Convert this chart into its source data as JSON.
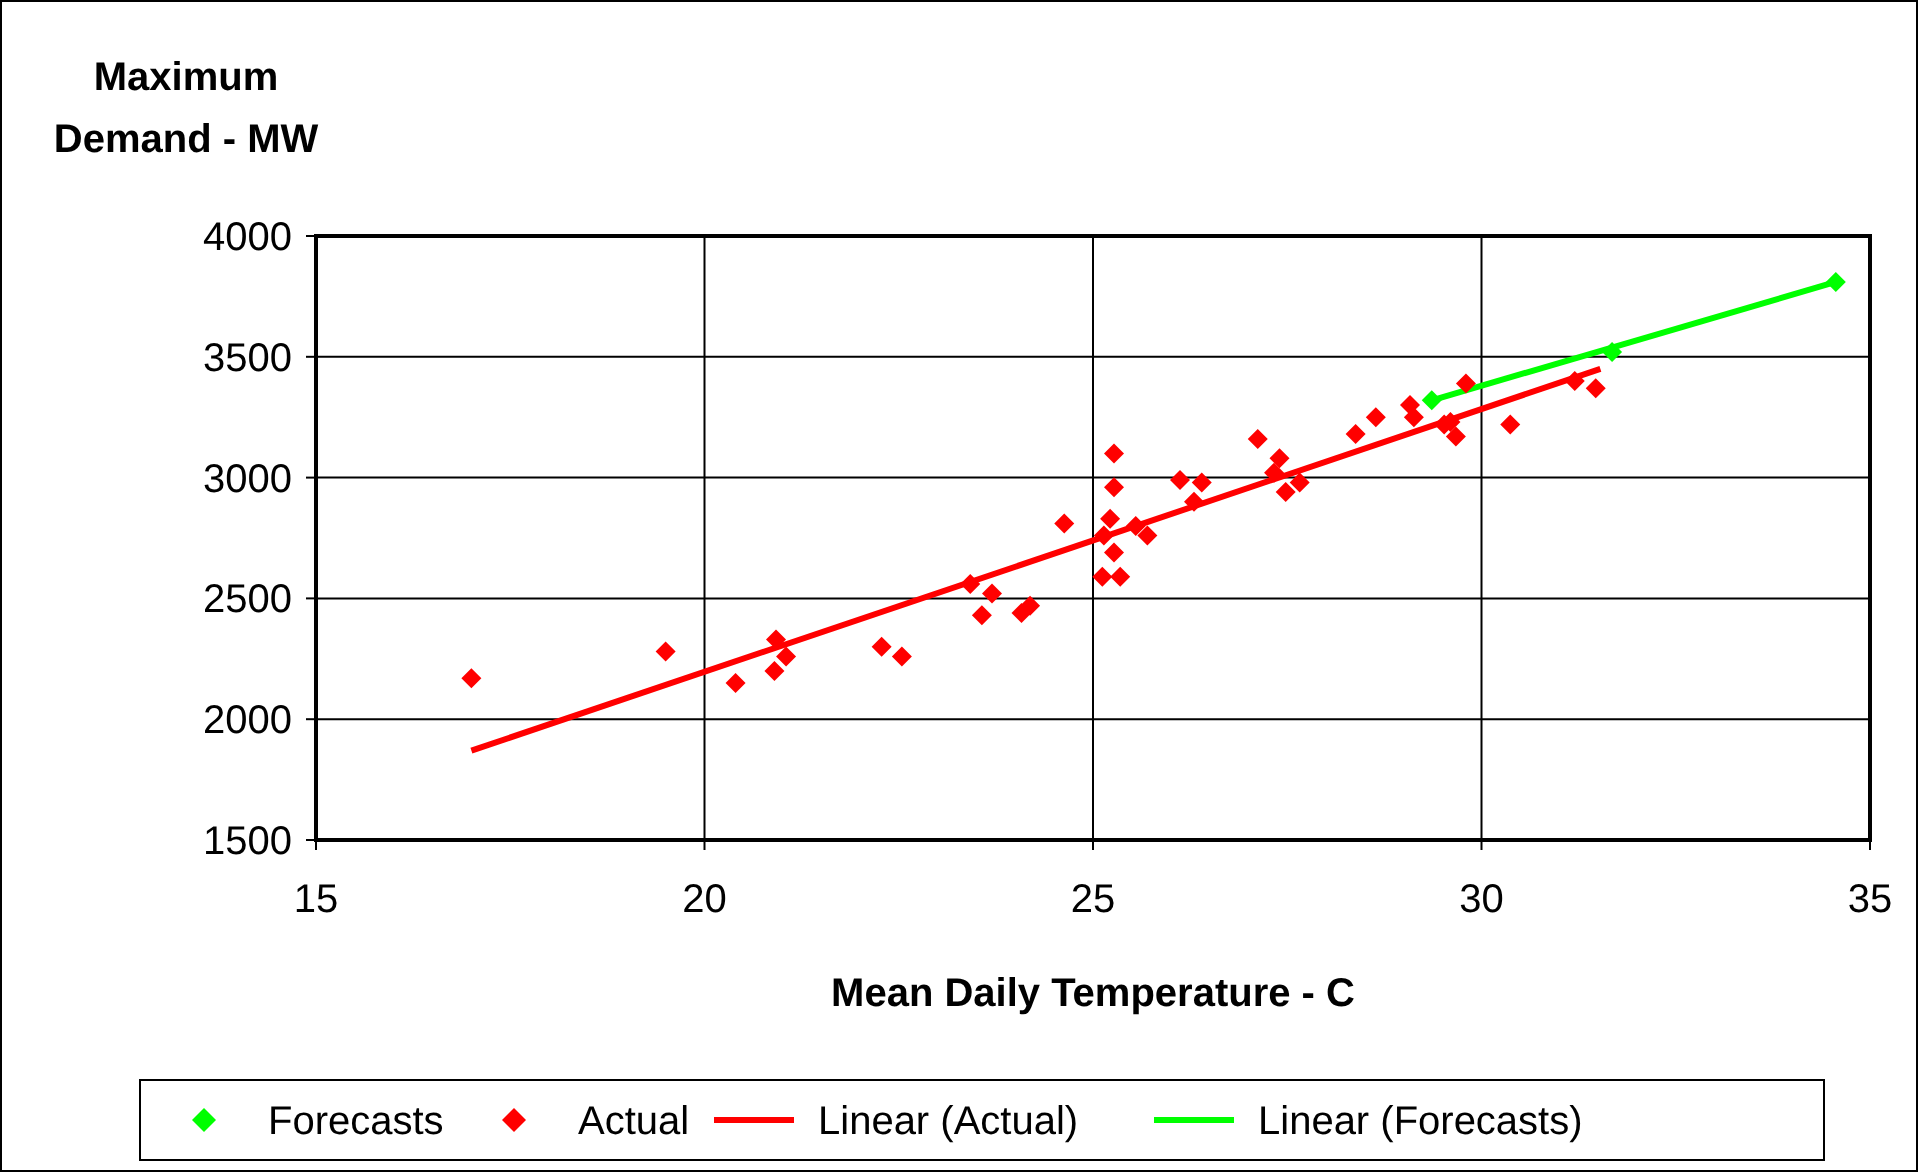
{
  "chart_data": {
    "type": "scatter",
    "xlabel": "Mean Daily Temperature - C",
    "ylabel": "Maximum Demand - MW",
    "xlim": [
      15,
      35
    ],
    "xticks": [
      15,
      20,
      25,
      30,
      35
    ],
    "ylim": [
      1500,
      4000
    ],
    "yticks": [
      1500,
      2000,
      2500,
      3000,
      3500,
      4000
    ],
    "grid": true,
    "legend": "bottom",
    "marker": "diamond",
    "series": [
      {
        "name": "Forecasts",
        "color": "#00ff00",
        "x": [
          29.36,
          31.68,
          34.56
        ],
        "values": [
          3320,
          3520,
          3810
        ]
      },
      {
        "name": "Actual",
        "color": "#ff0000",
        "x": [
          17.0,
          19.5,
          20.4,
          20.92,
          21.05,
          20.9,
          22.28,
          22.54,
          23.42,
          23.57,
          23.7,
          24.08,
          24.19,
          24.63,
          25.27,
          25.27,
          25.22,
          25.14,
          25.55,
          25.27,
          25.12,
          25.35,
          25.7,
          26.12,
          26.4,
          26.3,
          27.12,
          27.4,
          27.33,
          27.48,
          27.66,
          28.38,
          28.64,
          29.08,
          29.13,
          29.8,
          29.6,
          29.67,
          29.52,
          30.37,
          31.2,
          31.47
        ],
        "values": [
          2170,
          2280,
          2150,
          2330,
          2260,
          2200,
          2300,
          2260,
          2560,
          2430,
          2520,
          2440,
          2470,
          2810,
          3100,
          2960,
          2830,
          2760,
          2800,
          2690,
          2590,
          2590,
          2760,
          2990,
          2980,
          2900,
          3160,
          3080,
          3020,
          2940,
          2980,
          3180,
          3250,
          3300,
          3250,
          3390,
          3230,
          3170,
          3220,
          3220,
          3400,
          3370
        ]
      },
      {
        "name": "Linear (Actual)",
        "type": "line",
        "marker": "none",
        "color": "#ff0000",
        "x": [
          17.0,
          31.53
        ],
        "values": [
          1870,
          3450
        ]
      },
      {
        "name": "Linear (Forecasts)",
        "type": "line",
        "marker": "none",
        "color": "#00ff00",
        "x": [
          29.36,
          34.56
        ],
        "values": [
          3320,
          3810
        ]
      }
    ]
  }
}
